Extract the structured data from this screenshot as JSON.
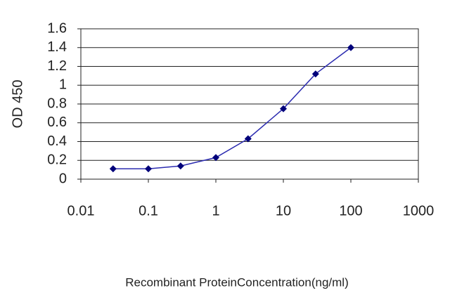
{
  "chart_data": {
    "type": "line",
    "x_label": "Recombinant ProteinConcentration(ng/ml)",
    "y_label": "OD 450",
    "x": [
      0.03,
      0.1,
      0.3,
      1,
      3,
      10,
      30,
      100
    ],
    "values": [
      0.11,
      0.11,
      0.14,
      0.23,
      0.43,
      0.75,
      1.12,
      1.4
    ],
    "color": "#2b2bb0",
    "marker_color": "#00007a",
    "xscale": "log",
    "xlim": [
      0.01,
      1000
    ],
    "xticks": [
      0.01,
      0.1,
      1,
      10,
      100,
      1000
    ],
    "ylim": [
      0,
      1.6
    ],
    "yticks": [
      0,
      0.2,
      0.4,
      0.6,
      0.8,
      1,
      1.2,
      1.4,
      1.6
    ],
    "grid": true
  }
}
